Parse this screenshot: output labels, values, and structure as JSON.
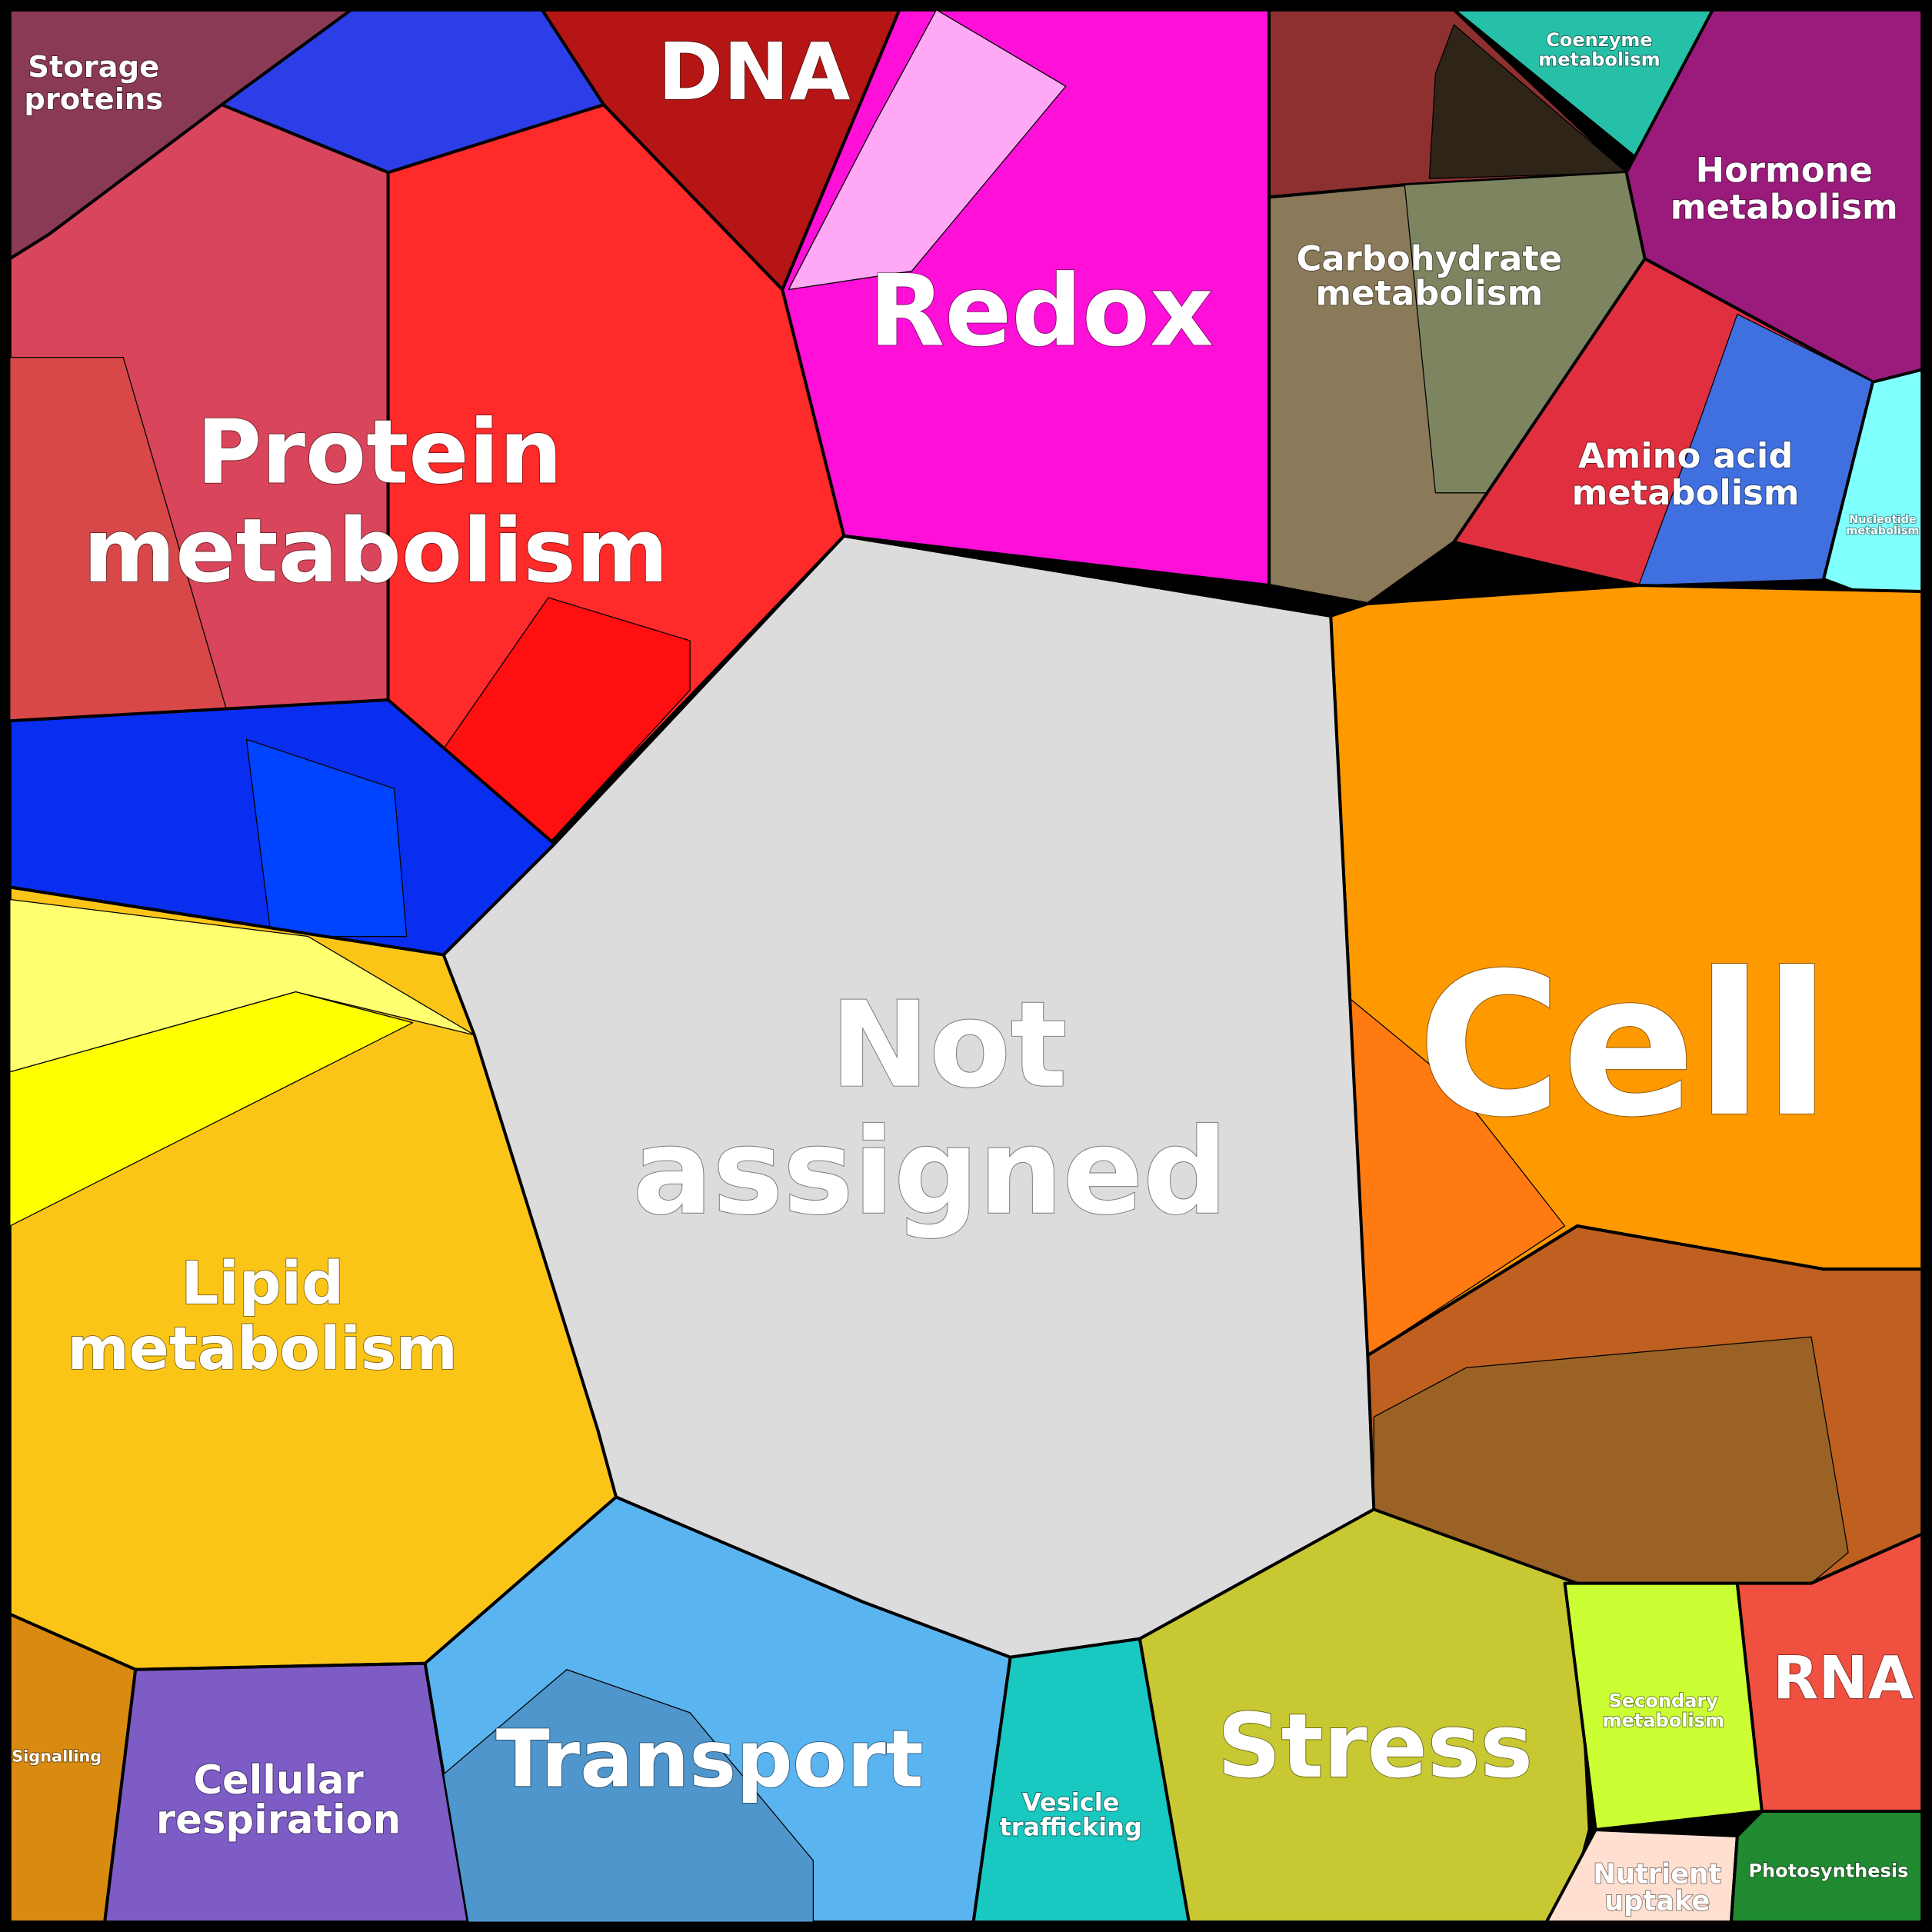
{
  "regions": [
    {
      "lines": [
        "Storage",
        "proteins"
      ]
    },
    {
      "lines": [
        "DNA"
      ]
    },
    {
      "lines": [
        "Redox"
      ]
    },
    {
      "lines": [
        "Protein",
        "metabolism"
      ]
    },
    {
      "lines": [
        "Carbohydrate",
        "metabolism"
      ]
    },
    {
      "lines": [
        "Coenzyme",
        "metabolism"
      ]
    },
    {
      "lines": [
        "Hormone",
        "metabolism"
      ]
    },
    {
      "lines": [
        "Amino acid",
        "metabolism"
      ]
    },
    {
      "lines": [
        "Nucleotide",
        "metabolism"
      ]
    },
    {
      "lines": [
        "Not",
        "assigned"
      ]
    },
    {
      "lines": [
        "Cell"
      ]
    },
    {
      "lines": [
        "Lipid",
        "metabolism"
      ]
    },
    {
      "lines": [
        "Signalling"
      ]
    },
    {
      "lines": [
        "Cellular",
        "respiration"
      ]
    },
    {
      "lines": [
        "Transport"
      ]
    },
    {
      "lines": [
        "Vesicle",
        "trafficking"
      ]
    },
    {
      "lines": [
        "Stress"
      ]
    },
    {
      "lines": [
        "Secondary",
        "metabolism"
      ]
    },
    {
      "lines": [
        "RNA"
      ]
    },
    {
      "lines": [
        "Nutrient",
        "uptake"
      ]
    },
    {
      "lines": [
        "Photosynthesis"
      ]
    }
  ]
}
